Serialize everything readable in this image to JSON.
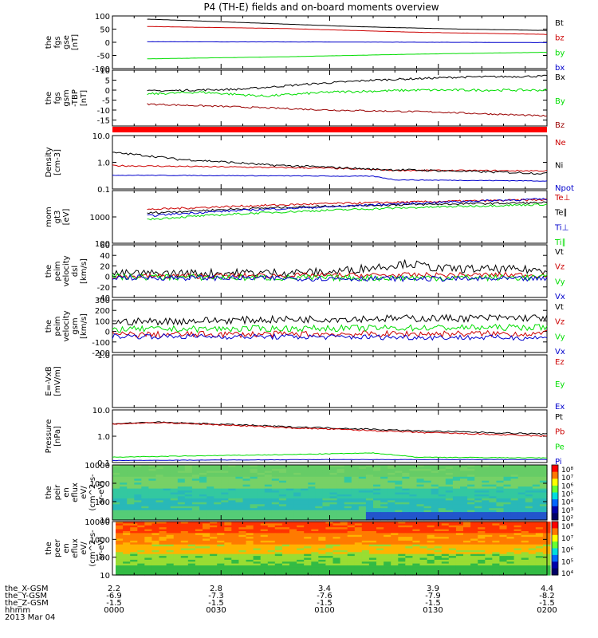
{
  "title": "P4 (TH-E) fields and on-board moments overview",
  "chart_data": {
    "type": "line",
    "title": "P4 (TH-E) fields and on-board moments overview",
    "x_ticks": [
      "0000",
      "0030",
      "0100",
      "0130",
      "0200"
    ],
    "x_range": [
      "0000",
      "0200"
    ],
    "x_unit": "hhmm",
    "date": "2013 Mar 04",
    "ephemeris": [
      {
        "name": "the_X-GSM",
        "values": [
          "2.2",
          "2.8",
          "3.4",
          "3.9",
          "4.4"
        ]
      },
      {
        "name": "the_Y-GSM",
        "values": [
          "-6.9",
          "-7.3",
          "-7.6",
          "-7.9",
          "-8.2"
        ]
      },
      {
        "name": "the_Z-GSM",
        "values": [
          "-1.5",
          "-1.5",
          "-1.5",
          "-1.5",
          "-1.5"
        ]
      },
      {
        "name": "hhmm",
        "values": [
          "0000",
          "0030",
          "0100",
          "0130",
          "0200"
        ]
      }
    ],
    "panels": [
      {
        "id": "fgs-gse",
        "ylabel": [
          "the",
          "fgs",
          "gse",
          "[nT]"
        ],
        "scale": "linear",
        "ylim": [
          -100,
          100
        ],
        "ticks": [
          {
            "v": 100,
            "t": "100"
          },
          {
            "v": 50,
            "t": "50"
          },
          {
            "v": 0,
            "t": "0"
          },
          {
            "v": -50,
            "t": "-50"
          },
          {
            "v": -100,
            "t": "-100"
          }
        ],
        "series": [
          {
            "name": "Bt",
            "color": "#000000",
            "noise": 0.3,
            "points": [
              [
                0.08,
                88
              ],
              [
                0.3,
                75
              ],
              [
                0.55,
                60
              ],
              [
                0.8,
                50
              ],
              [
                1.0,
                45
              ]
            ]
          },
          {
            "name": "bz",
            "color": "#cc0000",
            "noise": 0.3,
            "points": [
              [
                0.08,
                60
              ],
              [
                0.4,
                52
              ],
              [
                0.7,
                38
              ],
              [
                1.0,
                30
              ]
            ]
          },
          {
            "name": "by",
            "color": "#00dd00",
            "noise": 0.3,
            "points": [
              [
                0.08,
                -63
              ],
              [
                0.4,
                -55
              ],
              [
                0.7,
                -45
              ],
              [
                1.0,
                -38
              ]
            ]
          },
          {
            "name": "bx",
            "color": "#0000cc",
            "noise": 0.3,
            "points": [
              [
                0.08,
                2
              ],
              [
                0.5,
                1
              ],
              [
                1.0,
                -1
              ]
            ]
          }
        ]
      },
      {
        "id": "fgs-gsm-tbp",
        "ylabel": [
          "the",
          "fgs",
          "gsm",
          "-TBP",
          "[nT]"
        ],
        "scale": "linear",
        "ylim": [
          -18,
          10
        ],
        "ticks": [
          {
            "v": 10,
            "t": "10"
          },
          {
            "v": 5,
            "t": "5"
          },
          {
            "v": 0,
            "t": "0"
          },
          {
            "v": -5,
            "t": "-5"
          },
          {
            "v": -10,
            "t": "-10"
          },
          {
            "v": -15,
            "t": "-15"
          }
        ],
        "bar": {
          "color": "#ff0000"
        },
        "series": [
          {
            "name": "Bx",
            "color": "#000000",
            "noise": 0.5,
            "points": [
              [
                0.08,
                -0.5
              ],
              [
                0.3,
                0.5
              ],
              [
                0.45,
                3
              ],
              [
                0.6,
                5
              ],
              [
                0.8,
                6.5
              ],
              [
                1.0,
                7
              ]
            ]
          },
          {
            "name": "By",
            "color": "#00dd00",
            "noise": 0.6,
            "points": [
              [
                0.08,
                -2
              ],
              [
                0.2,
                -1
              ],
              [
                0.35,
                -3
              ],
              [
                0.5,
                -1
              ],
              [
                0.7,
                0
              ],
              [
                1.0,
                0
              ]
            ]
          },
          {
            "name": "Bz",
            "color": "#990000",
            "noise": 0.4,
            "points": [
              [
                0.08,
                -7
              ],
              [
                0.3,
                -8.5
              ],
              [
                0.5,
                -10
              ],
              [
                0.75,
                -11
              ],
              [
                1.0,
                -13
              ]
            ]
          }
        ]
      },
      {
        "id": "density",
        "ylabel": [
          "Density",
          "[cm-3]"
        ],
        "scale": "log",
        "ylim": [
          0.1,
          10
        ],
        "ticks": [
          {
            "v": 10,
            "t": "10.0"
          },
          {
            "v": 1,
            "t": "1.0"
          },
          {
            "v": 0.1,
            "t": "0.1"
          }
        ],
        "series": [
          {
            "name": "Ne",
            "color": "#cc0000",
            "noise": 0.02,
            "points": [
              [
                0.0,
                0.75
              ],
              [
                0.5,
                0.6
              ],
              [
                0.65,
                0.5
              ],
              [
                1.0,
                0.48
              ]
            ]
          },
          {
            "name": "Ni",
            "color": "#000000",
            "noise": 0.03,
            "points": [
              [
                0.0,
                2.3
              ],
              [
                0.15,
                1.3
              ],
              [
                0.35,
                0.8
              ],
              [
                0.6,
                0.55
              ],
              [
                1.0,
                0.38
              ]
            ]
          },
          {
            "name": "Npot",
            "color": "#0000cc",
            "noise": 0.01,
            "points": [
              [
                0.0,
                0.33
              ],
              [
                0.6,
                0.3
              ],
              [
                0.65,
                0.22
              ],
              [
                1.0,
                0.2
              ]
            ]
          }
        ]
      },
      {
        "id": "temperature",
        "ylabel": [
          "mom",
          "gt3",
          "[eV]"
        ],
        "scale": "log",
        "ylim": [
          100,
          10000
        ],
        "ticks": [
          {
            "v": 1000,
            "t": "1000"
          },
          {
            "v": 100,
            "t": "100"
          }
        ],
        "series": [
          {
            "name": "Te⊥",
            "color": "#cc0000",
            "noise": 0.03,
            "points": [
              [
                0.08,
                1900
              ],
              [
                0.5,
                3200
              ],
              [
                1.0,
                4500
              ]
            ]
          },
          {
            "name": "Te∥",
            "color": "#000000",
            "noise": 0.03,
            "points": [
              [
                0.08,
                1400
              ],
              [
                0.5,
                2600
              ],
              [
                1.0,
                3500
              ]
            ]
          },
          {
            "name": "Ti⊥",
            "color": "#0000cc",
            "noise": 0.03,
            "points": [
              [
                0.08,
                1100
              ],
              [
                0.5,
                2400
              ],
              [
                1.0,
                4800
              ]
            ]
          },
          {
            "name": "Ti∥",
            "color": "#00dd00",
            "noise": 0.03,
            "points": [
              [
                0.08,
                800
              ],
              [
                0.5,
                1800
              ],
              [
                1.0,
                3000
              ]
            ]
          }
        ]
      },
      {
        "id": "velocity-dsl",
        "ylabel": [
          "the",
          "peim",
          "velocity",
          "dsl",
          "[km/s]"
        ],
        "scale": "linear",
        "ylim": [
          -40,
          60
        ],
        "ticks": [
          {
            "v": 60,
            "t": "60"
          },
          {
            "v": 40,
            "t": "40"
          },
          {
            "v": 20,
            "t": "20"
          },
          {
            "v": 0,
            "t": "0"
          },
          {
            "v": -20,
            "t": "-20"
          },
          {
            "v": -40,
            "t": "-40"
          }
        ],
        "series": [
          {
            "name": "Vt",
            "color": "#000000",
            "noise": 8,
            "points": [
              [
                0.0,
                5
              ],
              [
                0.5,
                8
              ],
              [
                0.68,
                25
              ],
              [
                0.75,
                15
              ],
              [
                1.0,
                12
              ]
            ]
          },
          {
            "name": "Vz",
            "color": "#cc0000",
            "noise": 5,
            "points": [
              [
                0.0,
                0
              ],
              [
                0.5,
                2
              ],
              [
                1.0,
                3
              ]
            ]
          },
          {
            "name": "Vy",
            "color": "#00dd00",
            "noise": 6,
            "points": [
              [
                0.0,
                -1
              ],
              [
                0.5,
                -3
              ],
              [
                1.0,
                -2
              ]
            ]
          },
          {
            "name": "Vx",
            "color": "#0000cc",
            "noise": 5,
            "points": [
              [
                0.0,
                -2
              ],
              [
                0.5,
                -4
              ],
              [
                1.0,
                -5
              ]
            ]
          }
        ]
      },
      {
        "id": "velocity-gsm",
        "ylabel": [
          "the",
          "peim",
          "velocity",
          "gsm",
          "[km/s]"
        ],
        "scale": "linear",
        "ylim": [
          -200,
          300
        ],
        "ticks": [
          {
            "v": 300,
            "t": "300"
          },
          {
            "v": 200,
            "t": "200"
          },
          {
            "v": 100,
            "t": "100"
          },
          {
            "v": 0,
            "t": "0"
          },
          {
            "v": -100,
            "t": "-100"
          },
          {
            "v": -200,
            "t": "-200"
          }
        ],
        "series": [
          {
            "name": "Vt",
            "color": "#000000",
            "noise": 35,
            "points": [
              [
                0.0,
                90
              ],
              [
                0.5,
                120
              ],
              [
                1.0,
                130
              ]
            ]
          },
          {
            "name": "Vz",
            "color": "#cc0000",
            "noise": 30,
            "points": [
              [
                0.0,
                -30
              ],
              [
                1.0,
                -20
              ]
            ]
          },
          {
            "name": "Vy",
            "color": "#00dd00",
            "noise": 30,
            "points": [
              [
                0.0,
                20
              ],
              [
                1.0,
                40
              ]
            ]
          },
          {
            "name": "Vx",
            "color": "#0000cc",
            "noise": 25,
            "points": [
              [
                0.0,
                -45
              ],
              [
                1.0,
                -60
              ]
            ]
          }
        ]
      },
      {
        "id": "efield",
        "ylabel": [
          "E=-VxB",
          "[mV/m]"
        ],
        "scale": "linear",
        "ylim": [
          -1,
          1
        ],
        "ticks": [
          {
            "v": 1,
            "t": "1.0"
          }
        ],
        "series": [
          {
            "name": "Ez",
            "color": "#cc0000",
            "points": []
          },
          {
            "name": "Ey",
            "color": "#00dd00",
            "points": []
          },
          {
            "name": "Ex",
            "color": "#0000cc",
            "points": []
          }
        ]
      },
      {
        "id": "pressure",
        "ylabel": [
          "Pressure",
          "[nPa]"
        ],
        "scale": "log",
        "ylim": [
          0.1,
          10
        ],
        "ticks": [
          {
            "v": 10,
            "t": "10.0"
          },
          {
            "v": 1,
            "t": "1.0"
          },
          {
            "v": 0.1,
            "t": "0.1"
          }
        ],
        "series": [
          {
            "name": "Pt",
            "color": "#000000",
            "noise": 0.02,
            "points": [
              [
                0.0,
                3.0
              ],
              [
                0.1,
                3.4
              ],
              [
                0.4,
                2.3
              ],
              [
                0.7,
                1.6
              ],
              [
                1.0,
                1.2
              ]
            ]
          },
          {
            "name": "Pb",
            "color": "#cc0000",
            "noise": 0.02,
            "points": [
              [
                0.0,
                2.9
              ],
              [
                0.1,
                3.3
              ],
              [
                0.4,
                2.1
              ],
              [
                0.7,
                1.4
              ],
              [
                1.0,
                1.0
              ]
            ]
          },
          {
            "name": "Pe",
            "color": "#00dd00",
            "noise": 0.01,
            "points": [
              [
                0.0,
                0.16
              ],
              [
                0.4,
                0.2
              ],
              [
                0.6,
                0.23
              ],
              [
                0.7,
                0.16
              ],
              [
                1.0,
                0.15
              ]
            ]
          },
          {
            "name": "Pi",
            "color": "#0000cc",
            "noise": 0.005,
            "points": [
              [
                0.0,
                0.12
              ],
              [
                0.5,
                0.13
              ],
              [
                1.0,
                0.13
              ]
            ]
          }
        ]
      },
      {
        "id": "ion-spectrogram",
        "type": "heatmap",
        "ylabel": [
          "the",
          "peir",
          "en",
          "eflux",
          "eV/",
          "(cm^2-s-",
          "sr-eV)"
        ],
        "scale": "log",
        "ylim": [
          10,
          10000
        ],
        "ticks": [
          {
            "v": 10000,
            "t": "10000"
          },
          {
            "v": 1000,
            "t": "1000"
          },
          {
            "v": 100,
            "t": "100"
          },
          {
            "v": 10,
            "t": "10"
          }
        ],
        "colorbar": {
          "ticks": [
            "10⁸",
            "10⁷",
            "10⁶",
            "10⁵",
            "10⁴",
            "10³",
            "10²"
          ]
        }
      },
      {
        "id": "electron-spectrogram",
        "type": "heatmap",
        "ylabel": [
          "the",
          "peer",
          "en",
          "eflux",
          "eV/",
          "(cm^2-s-",
          "sr-eV)"
        ],
        "scale": "log",
        "ylim": [
          10,
          10000
        ],
        "ticks": [
          {
            "v": 10000,
            "t": "10000"
          },
          {
            "v": 1000,
            "t": "1000"
          },
          {
            "v": 100,
            "t": "100"
          },
          {
            "v": 10,
            "t": "10"
          }
        ],
        "colorbar": {
          "ticks": [
            "10⁸",
            "10⁷",
            "10⁶",
            "10⁵",
            "10⁴"
          ]
        }
      }
    ]
  }
}
